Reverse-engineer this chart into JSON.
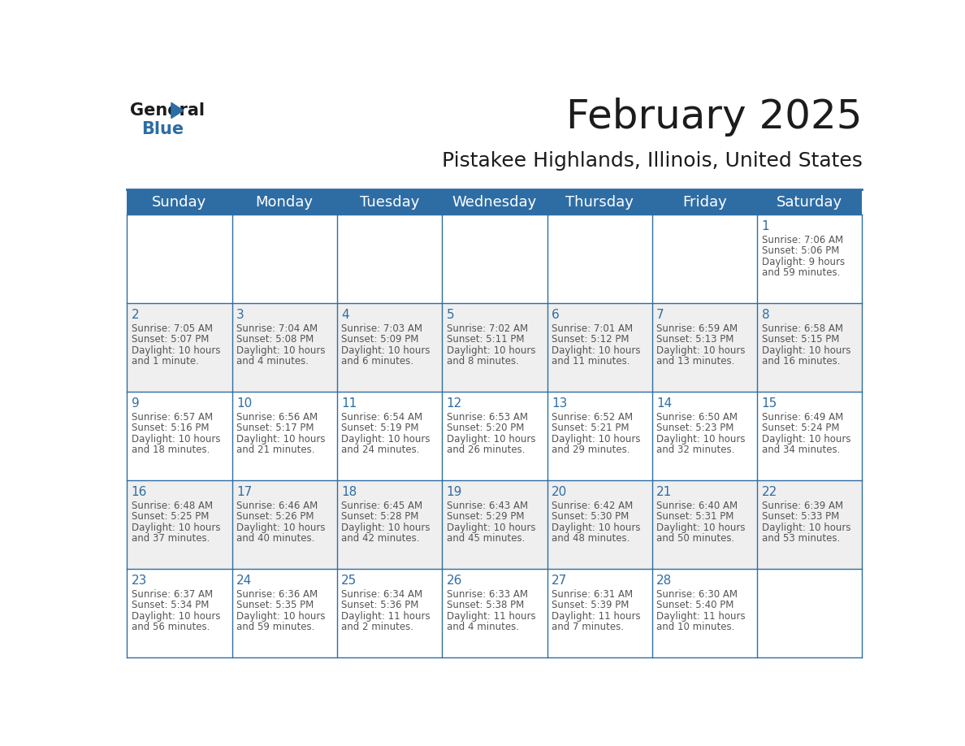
{
  "title": "February 2025",
  "subtitle": "Pistakee Highlands, Illinois, United States",
  "header_bg": "#2E6DA4",
  "header_text_color": "#FFFFFF",
  "cell_bg_light": "#EFEFEF",
  "cell_bg_white": "#FFFFFF",
  "grid_line_color": "#2E6DA4",
  "day_headers": [
    "Sunday",
    "Monday",
    "Tuesday",
    "Wednesday",
    "Thursday",
    "Friday",
    "Saturday"
  ],
  "days": [
    {
      "day": 1,
      "col": 6,
      "row": 0,
      "sunrise": "7:06 AM",
      "sunset": "5:06 PM",
      "daylight_line1": "Daylight: 9 hours",
      "daylight_line2": "and 59 minutes."
    },
    {
      "day": 2,
      "col": 0,
      "row": 1,
      "sunrise": "7:05 AM",
      "sunset": "5:07 PM",
      "daylight_line1": "Daylight: 10 hours",
      "daylight_line2": "and 1 minute."
    },
    {
      "day": 3,
      "col": 1,
      "row": 1,
      "sunrise": "7:04 AM",
      "sunset": "5:08 PM",
      "daylight_line1": "Daylight: 10 hours",
      "daylight_line2": "and 4 minutes."
    },
    {
      "day": 4,
      "col": 2,
      "row": 1,
      "sunrise": "7:03 AM",
      "sunset": "5:09 PM",
      "daylight_line1": "Daylight: 10 hours",
      "daylight_line2": "and 6 minutes."
    },
    {
      "day": 5,
      "col": 3,
      "row": 1,
      "sunrise": "7:02 AM",
      "sunset": "5:11 PM",
      "daylight_line1": "Daylight: 10 hours",
      "daylight_line2": "and 8 minutes."
    },
    {
      "day": 6,
      "col": 4,
      "row": 1,
      "sunrise": "7:01 AM",
      "sunset": "5:12 PM",
      "daylight_line1": "Daylight: 10 hours",
      "daylight_line2": "and 11 minutes."
    },
    {
      "day": 7,
      "col": 5,
      "row": 1,
      "sunrise": "6:59 AM",
      "sunset": "5:13 PM",
      "daylight_line1": "Daylight: 10 hours",
      "daylight_line2": "and 13 minutes."
    },
    {
      "day": 8,
      "col": 6,
      "row": 1,
      "sunrise": "6:58 AM",
      "sunset": "5:15 PM",
      "daylight_line1": "Daylight: 10 hours",
      "daylight_line2": "and 16 minutes."
    },
    {
      "day": 9,
      "col": 0,
      "row": 2,
      "sunrise": "6:57 AM",
      "sunset": "5:16 PM",
      "daylight_line1": "Daylight: 10 hours",
      "daylight_line2": "and 18 minutes."
    },
    {
      "day": 10,
      "col": 1,
      "row": 2,
      "sunrise": "6:56 AM",
      "sunset": "5:17 PM",
      "daylight_line1": "Daylight: 10 hours",
      "daylight_line2": "and 21 minutes."
    },
    {
      "day": 11,
      "col": 2,
      "row": 2,
      "sunrise": "6:54 AM",
      "sunset": "5:19 PM",
      "daylight_line1": "Daylight: 10 hours",
      "daylight_line2": "and 24 minutes."
    },
    {
      "day": 12,
      "col": 3,
      "row": 2,
      "sunrise": "6:53 AM",
      "sunset": "5:20 PM",
      "daylight_line1": "Daylight: 10 hours",
      "daylight_line2": "and 26 minutes."
    },
    {
      "day": 13,
      "col": 4,
      "row": 2,
      "sunrise": "6:52 AM",
      "sunset": "5:21 PM",
      "daylight_line1": "Daylight: 10 hours",
      "daylight_line2": "and 29 minutes."
    },
    {
      "day": 14,
      "col": 5,
      "row": 2,
      "sunrise": "6:50 AM",
      "sunset": "5:23 PM",
      "daylight_line1": "Daylight: 10 hours",
      "daylight_line2": "and 32 minutes."
    },
    {
      "day": 15,
      "col": 6,
      "row": 2,
      "sunrise": "6:49 AM",
      "sunset": "5:24 PM",
      "daylight_line1": "Daylight: 10 hours",
      "daylight_line2": "and 34 minutes."
    },
    {
      "day": 16,
      "col": 0,
      "row": 3,
      "sunrise": "6:48 AM",
      "sunset": "5:25 PM",
      "daylight_line1": "Daylight: 10 hours",
      "daylight_line2": "and 37 minutes."
    },
    {
      "day": 17,
      "col": 1,
      "row": 3,
      "sunrise": "6:46 AM",
      "sunset": "5:26 PM",
      "daylight_line1": "Daylight: 10 hours",
      "daylight_line2": "and 40 minutes."
    },
    {
      "day": 18,
      "col": 2,
      "row": 3,
      "sunrise": "6:45 AM",
      "sunset": "5:28 PM",
      "daylight_line1": "Daylight: 10 hours",
      "daylight_line2": "and 42 minutes."
    },
    {
      "day": 19,
      "col": 3,
      "row": 3,
      "sunrise": "6:43 AM",
      "sunset": "5:29 PM",
      "daylight_line1": "Daylight: 10 hours",
      "daylight_line2": "and 45 minutes."
    },
    {
      "day": 20,
      "col": 4,
      "row": 3,
      "sunrise": "6:42 AM",
      "sunset": "5:30 PM",
      "daylight_line1": "Daylight: 10 hours",
      "daylight_line2": "and 48 minutes."
    },
    {
      "day": 21,
      "col": 5,
      "row": 3,
      "sunrise": "6:40 AM",
      "sunset": "5:31 PM",
      "daylight_line1": "Daylight: 10 hours",
      "daylight_line2": "and 50 minutes."
    },
    {
      "day": 22,
      "col": 6,
      "row": 3,
      "sunrise": "6:39 AM",
      "sunset": "5:33 PM",
      "daylight_line1": "Daylight: 10 hours",
      "daylight_line2": "and 53 minutes."
    },
    {
      "day": 23,
      "col": 0,
      "row": 4,
      "sunrise": "6:37 AM",
      "sunset": "5:34 PM",
      "daylight_line1": "Daylight: 10 hours",
      "daylight_line2": "and 56 minutes."
    },
    {
      "day": 24,
      "col": 1,
      "row": 4,
      "sunrise": "6:36 AM",
      "sunset": "5:35 PM",
      "daylight_line1": "Daylight: 10 hours",
      "daylight_line2": "and 59 minutes."
    },
    {
      "day": 25,
      "col": 2,
      "row": 4,
      "sunrise": "6:34 AM",
      "sunset": "5:36 PM",
      "daylight_line1": "Daylight: 11 hours",
      "daylight_line2": "and 2 minutes."
    },
    {
      "day": 26,
      "col": 3,
      "row": 4,
      "sunrise": "6:33 AM",
      "sunset": "5:38 PM",
      "daylight_line1": "Daylight: 11 hours",
      "daylight_line2": "and 4 minutes."
    },
    {
      "day": 27,
      "col": 4,
      "row": 4,
      "sunrise": "6:31 AM",
      "sunset": "5:39 PM",
      "daylight_line1": "Daylight: 11 hours",
      "daylight_line2": "and 7 minutes."
    },
    {
      "day": 28,
      "col": 5,
      "row": 4,
      "sunrise": "6:30 AM",
      "sunset": "5:40 PM",
      "daylight_line1": "Daylight: 11 hours",
      "daylight_line2": "and 10 minutes."
    }
  ],
  "num_rows": 5,
  "num_cols": 7,
  "day_number_color": "#2E6DA4",
  "info_text_color": "#555555",
  "title_fontsize": 36,
  "subtitle_fontsize": 18,
  "header_fontsize": 13,
  "day_num_fontsize": 11,
  "info_fontsize": 8.5
}
